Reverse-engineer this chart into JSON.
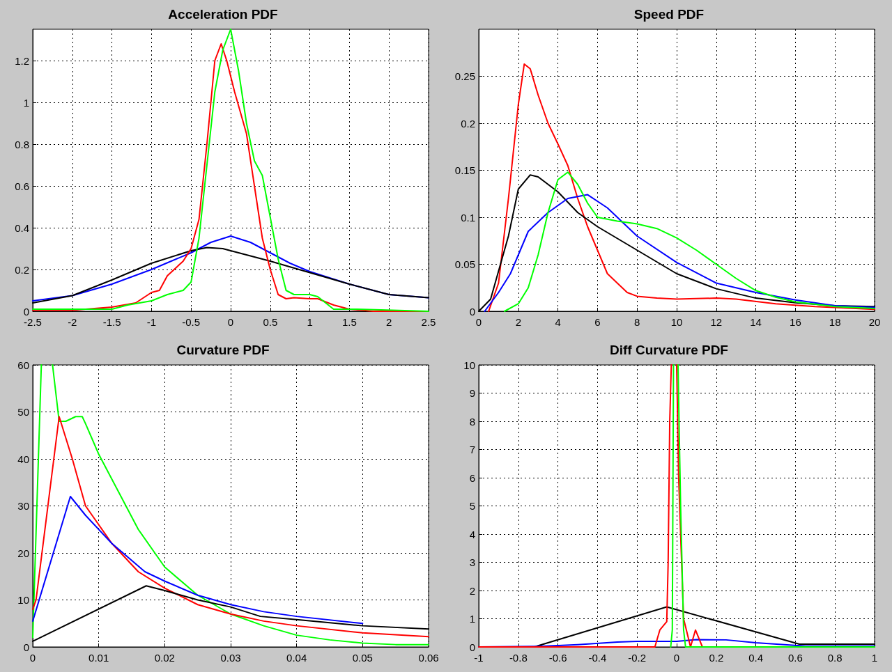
{
  "chart_data": [
    {
      "type": "line",
      "title": "Acceleration PDF",
      "xlim": [
        -2.5,
        2.5
      ],
      "xticks": [
        -2.5,
        -2,
        -1.5,
        -1,
        -0.5,
        0,
        0.5,
        1,
        1.5,
        2,
        2.5
      ],
      "ylim": [
        0,
        1.35
      ],
      "yticks": [
        0,
        0.2,
        0.4,
        0.6,
        0.8,
        1,
        1.2
      ],
      "grid": true,
      "marker": "none",
      "line_style": "solid",
      "series": [
        {
          "color": "#0000ff",
          "x": [
            -2.5,
            -2,
            -1.5,
            -1,
            -0.5,
            -0.25,
            0,
            0.25,
            0.5,
            0.75,
            1,
            1.5,
            2,
            2.5
          ],
          "values": [
            0.05,
            0.075,
            0.13,
            0.2,
            0.28,
            0.33,
            0.36,
            0.33,
            0.28,
            0.23,
            0.19,
            0.13,
            0.08,
            0.065
          ]
        },
        {
          "color": "#000000",
          "x": [
            -2.5,
            -2,
            -1.5,
            -1,
            -0.5,
            -0.3,
            -0.1,
            0,
            0.5,
            1,
            1.5,
            2,
            2.5
          ],
          "values": [
            0.04,
            0.075,
            0.15,
            0.23,
            0.29,
            0.305,
            0.3,
            0.29,
            0.24,
            0.185,
            0.13,
            0.08,
            0.065
          ]
        },
        {
          "color": "#ff0000",
          "x": [
            -2.5,
            -2,
            -1.5,
            -1.2,
            -1,
            -0.9,
            -0.8,
            -0.6,
            -0.5,
            -0.4,
            -0.3,
            -0.2,
            -0.12,
            -0.05,
            0.05,
            0.2,
            0.3,
            0.4,
            0.5,
            0.6,
            0.7,
            0.8,
            1,
            1.1,
            1.3,
            1.5,
            1.8,
            2.5
          ],
          "values": [
            0.005,
            0.005,
            0.02,
            0.04,
            0.09,
            0.1,
            0.17,
            0.24,
            0.3,
            0.44,
            0.8,
            1.2,
            1.28,
            1.2,
            1.05,
            0.85,
            0.6,
            0.35,
            0.2,
            0.08,
            0.06,
            0.065,
            0.06,
            0.06,
            0.03,
            0.01,
            0,
            0
          ]
        },
        {
          "color": "#00ff00",
          "x": [
            -2.5,
            -2,
            -1.5,
            -1.3,
            -1,
            -0.8,
            -0.6,
            -0.5,
            -0.4,
            -0.3,
            -0.2,
            -0.1,
            0,
            0.1,
            0.2,
            0.3,
            0.4,
            0.5,
            0.6,
            0.7,
            0.8,
            1,
            1.1,
            1.3,
            1.6,
            2.5
          ],
          "values": [
            0.01,
            0.01,
            0.01,
            0.03,
            0.05,
            0.08,
            0.1,
            0.14,
            0.35,
            0.7,
            1.05,
            1.25,
            1.35,
            1.15,
            0.9,
            0.72,
            0.65,
            0.45,
            0.25,
            0.1,
            0.08,
            0.08,
            0.07,
            0.01,
            0.01,
            0
          ]
        }
      ]
    },
    {
      "type": "line",
      "title": "Speed PDF",
      "xlim": [
        0,
        20
      ],
      "xticks": [
        0,
        2,
        4,
        6,
        8,
        10,
        12,
        14,
        16,
        18,
        20
      ],
      "ylim": [
        0,
        0.3
      ],
      "yticks": [
        0,
        0.05,
        0.1,
        0.15,
        0.2,
        0.25
      ],
      "grid": true,
      "marker": "none",
      "line_style": "solid",
      "series": [
        {
          "color": "#ff0000",
          "x": [
            0.5,
            1,
            1.5,
            2,
            2.3,
            2.6,
            3,
            3.5,
            4,
            4.5,
            5,
            5.5,
            6,
            6.5,
            7.5,
            8,
            9,
            10,
            12,
            13,
            15,
            17,
            20
          ],
          "values": [
            0,
            0.03,
            0.12,
            0.22,
            0.263,
            0.258,
            0.23,
            0.2,
            0.178,
            0.155,
            0.12,
            0.09,
            0.065,
            0.04,
            0.02,
            0.016,
            0.014,
            0.013,
            0.014,
            0.013,
            0.008,
            0.005,
            0.002
          ]
        },
        {
          "color": "#000000",
          "x": [
            0,
            0.6,
            1.5,
            2,
            2.6,
            3,
            4,
            5,
            6,
            8,
            10,
            12,
            14,
            16,
            18,
            20
          ],
          "values": [
            0,
            0.013,
            0.08,
            0.13,
            0.145,
            0.143,
            0.127,
            0.105,
            0.09,
            0.065,
            0.04,
            0.024,
            0.014,
            0.009,
            0.006,
            0.005
          ]
        },
        {
          "color": "#0000ff",
          "x": [
            0.3,
            1,
            1.6,
            2.5,
            3.5,
            4.5,
            5.5,
            6.5,
            8,
            10,
            12,
            14,
            16,
            18,
            20
          ],
          "values": [
            0,
            0.02,
            0.04,
            0.085,
            0.105,
            0.12,
            0.124,
            0.11,
            0.08,
            0.052,
            0.03,
            0.02,
            0.012,
            0.006,
            0.004
          ]
        },
        {
          "color": "#00ff00",
          "x": [
            1.3,
            2,
            2.5,
            3,
            3.5,
            4,
            4.5,
            5,
            5.5,
            6,
            7,
            8,
            9,
            10,
            11,
            12,
            13,
            14,
            15,
            16,
            18,
            20
          ],
          "values": [
            0,
            0.008,
            0.025,
            0.06,
            0.105,
            0.14,
            0.148,
            0.135,
            0.115,
            0.1,
            0.096,
            0.093,
            0.088,
            0.078,
            0.065,
            0.05,
            0.035,
            0.022,
            0.015,
            0.01,
            0.005,
            0.003
          ]
        }
      ]
    },
    {
      "type": "line",
      "title": "Curvature PDF",
      "xlim": [
        0,
        0.06
      ],
      "xticks": [
        0,
        0.01,
        0.02,
        0.03,
        0.04,
        0.05,
        0.06
      ],
      "ylim": [
        0,
        60
      ],
      "yticks": [
        0,
        10,
        20,
        30,
        40,
        50,
        60
      ],
      "grid": true,
      "marker": "none",
      "line_style": "solid",
      "series": [
        {
          "color": "#00ff00",
          "x": [
            0,
            0.0013,
            0.002,
            0.003,
            0.004,
            0.005,
            0.0065,
            0.0075,
            0.008,
            0.01,
            0.013,
            0.016,
            0.02,
            0.025,
            0.03,
            0.035,
            0.04,
            0.045,
            0.05,
            0.055,
            0.06
          ],
          "values": [
            2,
            60,
            null,
            60,
            48,
            48,
            49,
            49,
            47.5,
            41,
            33,
            25,
            17,
            11,
            7,
            4.5,
            2.5,
            1.5,
            0.8,
            0.5,
            0.5
          ]
        },
        {
          "color": "#ff0000",
          "x": [
            0,
            0.0005,
            0.004,
            0.006,
            0.008,
            0.012,
            0.016,
            0.02,
            0.025,
            0.03,
            0.035,
            0.04,
            0.05,
            0.06
          ],
          "values": [
            8,
            10,
            49,
            40,
            30,
            22,
            16,
            12.5,
            9,
            7,
            5.5,
            4.5,
            3,
            2.2
          ]
        },
        {
          "color": "#0000ff",
          "x": [
            0,
            0.0057,
            0.008,
            0.012,
            0.017,
            0.02,
            0.025,
            0.03,
            0.035,
            0.04,
            0.05
          ],
          "values": [
            5.5,
            32,
            28,
            22,
            16,
            14,
            11,
            9,
            7.5,
            6.5,
            5
          ]
        },
        {
          "color": "#000000",
          "x": [
            0,
            0.0172,
            0.02,
            0.025,
            0.03,
            0.0345,
            0.04,
            0.05,
            0.06
          ],
          "values": [
            1.2,
            13,
            12,
            10,
            8.5,
            6.5,
            5.8,
            4.5,
            3.8
          ]
        }
      ]
    },
    {
      "type": "line",
      "title": "Diff Curvature PDF",
      "xlim": [
        -1,
        1
      ],
      "xticks": [
        -1,
        -0.8,
        -0.6,
        -0.4,
        -0.2,
        0,
        0.2,
        0.4,
        0.6,
        0.8,
        1
      ],
      "ylim": [
        0,
        10
      ],
      "yticks": [
        0,
        1,
        2,
        3,
        4,
        5,
        6,
        7,
        8,
        9,
        10
      ],
      "grid": true,
      "marker": "none",
      "line_style": "solid",
      "series": [
        {
          "color": "#000000",
          "x": [
            -1,
            -0.72,
            -0.05,
            0.62,
            1
          ],
          "values": [
            0,
            0,
            1.42,
            0.1,
            0.1
          ]
        },
        {
          "color": "#0000ff",
          "x": [
            -1,
            -0.7,
            -0.5,
            -0.3,
            -0.2,
            0,
            0.1,
            0.25,
            0.4,
            0.65,
            1
          ],
          "values": [
            0,
            0.02,
            0.08,
            0.17,
            0.2,
            0.2,
            0.26,
            0.25,
            0.15,
            0.03,
            0.03
          ]
        },
        {
          "color": "#ff0000",
          "x": [
            -1,
            -0.11,
            -0.085,
            -0.05,
            -0.043,
            -0.035,
            -0.027,
            -0.013,
            0,
            0.01,
            0.035,
            0.07,
            0.095,
            0.13,
            1
          ],
          "values": [
            0,
            0,
            0.6,
            0.9,
            3,
            8,
            10,
            null,
            10,
            6,
            1,
            0,
            0.6,
            0,
            0
          ]
        },
        {
          "color": "#00ff00",
          "x": [
            -0.03,
            -0.022,
            -0.016,
            -0.005,
            0.007,
            0.012,
            0.02,
            0.035,
            0.045,
            1
          ],
          "values": [
            0,
            0.6,
            10,
            null,
            10,
            8,
            5,
            0.6,
            0,
            0
          ]
        }
      ]
    }
  ]
}
